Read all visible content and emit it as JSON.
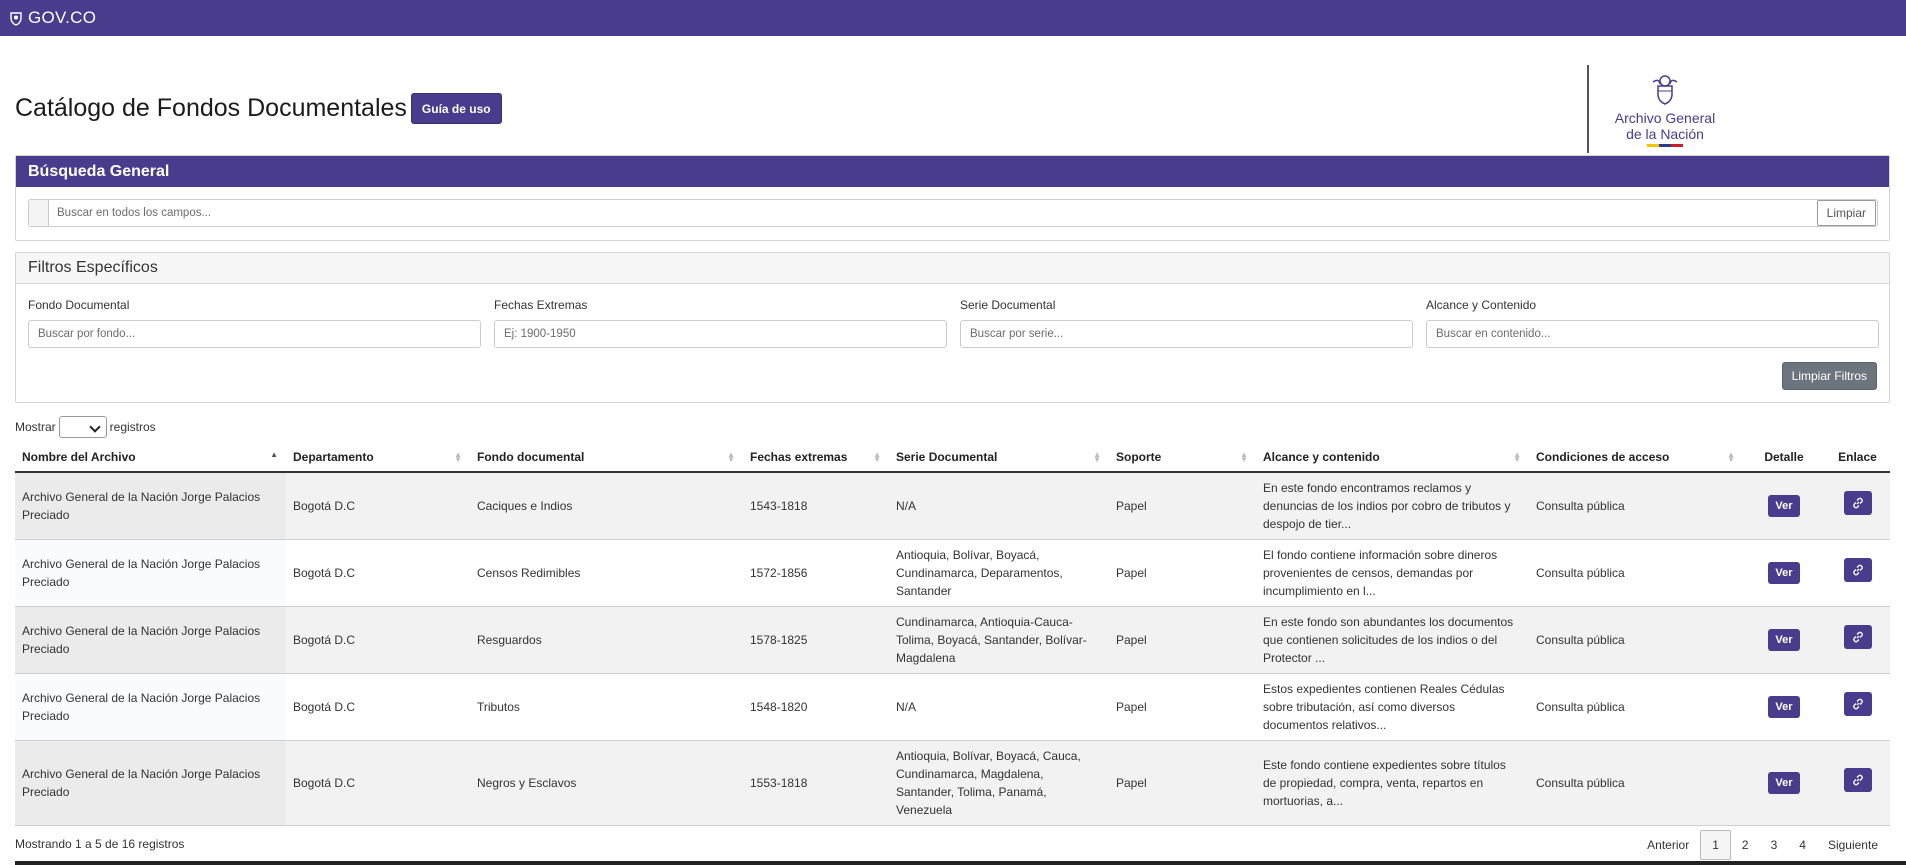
{
  "topbar": {
    "logo_text": "GOV.CO"
  },
  "header": {
    "title": "Catálogo de Fondos Documentales",
    "guide_button": "Guía de uso",
    "agn_logo_line1": "Archivo General",
    "agn_logo_line2": "de la Nación"
  },
  "general_search": {
    "heading": "Búsqueda General",
    "placeholder": "Buscar en todos los campos...",
    "clear_label": "Limpiar"
  },
  "filters": {
    "heading": "Filtros Específicos",
    "fields": [
      {
        "label": "Fondo Documental",
        "placeholder": "Buscar por fondo..."
      },
      {
        "label": "Fechas Extremas",
        "placeholder": "Ej: 1900-1950"
      },
      {
        "label": "Serie Documental",
        "placeholder": "Buscar por serie..."
      },
      {
        "label": "Alcance y Contenido",
        "placeholder": "Buscar en contenido..."
      }
    ],
    "reset_label": "Limpiar Filtros"
  },
  "length": {
    "prefix": "Mostrar",
    "suffix": "registros"
  },
  "table": {
    "columns": [
      "Nombre del Archivo",
      "Departamento",
      "Fondo documental",
      "Fechas extremas",
      "Serie Documental",
      "Soporte",
      "Alcance y contenido",
      "Condiciones de acceso",
      "Detalle",
      "Enlace"
    ],
    "detail_button": "Ver",
    "rows": [
      [
        "Archivo General de la Nación Jorge Palacios Preciado",
        "Bogotá D.C",
        "Caciques e Indios",
        "1543-1818",
        "N/A",
        "Papel",
        "En este fondo encontramos reclamos y denuncias de los indios por cobro de tributos y despojo de tier...",
        "Consulta pública"
      ],
      [
        "Archivo General de la Nación Jorge Palacios Preciado",
        "Bogotá D.C",
        "Censos Redimibles",
        "1572-1856",
        "Antioquia, Bolívar, Boyacá, Cundinamarca, Deparamentos, Santander",
        "Papel",
        "El fondo contiene información sobre dineros provenientes de censos, demandas por incumplimiento en l...",
        "Consulta pública"
      ],
      [
        "Archivo General de la Nación Jorge Palacios Preciado",
        "Bogotá D.C",
        "Resguardos",
        "1578-1825",
        "Cundinamarca, Antioquia-Cauca-Tolima, Boyacá, Santander, Bolívar-Magdalena",
        "Papel",
        "En este fondo son abundantes los documentos que contienen solicitudes de los indios o del Protector ...",
        "Consulta pública"
      ],
      [
        "Archivo General de la Nación Jorge Palacios Preciado",
        "Bogotá D.C",
        "Tributos",
        "1548-1820",
        "N/A",
        "Papel",
        "Estos expedientes contienen Reales Cédulas sobre tributación, así como diversos documentos relativos...",
        "Consulta pública"
      ],
      [
        "Archivo General de la Nación Jorge Palacios Preciado",
        "Bogotá D.C",
        "Negros y Esclavos",
        "1553-1818",
        "Antioquia, Bolívar, Boyacá, Cauca, Cundinamarca, Magdalena, Santander, Tolima, Panamá, Venezuela",
        "Papel",
        "Este fondo contiene expedientes sobre títulos de propiedad, compra, venta, repartos en mortuorias, a...",
        "Consulta pública"
      ]
    ]
  },
  "footer": {
    "info": "Mostrando 1 a 5 de 16 registros",
    "pagination": {
      "previous": "Anterior",
      "pages": [
        "1",
        "2",
        "3",
        "4"
      ],
      "next": "Siguiente",
      "active": "1"
    }
  },
  "colors": {
    "brand": "#4a3c8c",
    "secondary_button": "#6c757d"
  }
}
